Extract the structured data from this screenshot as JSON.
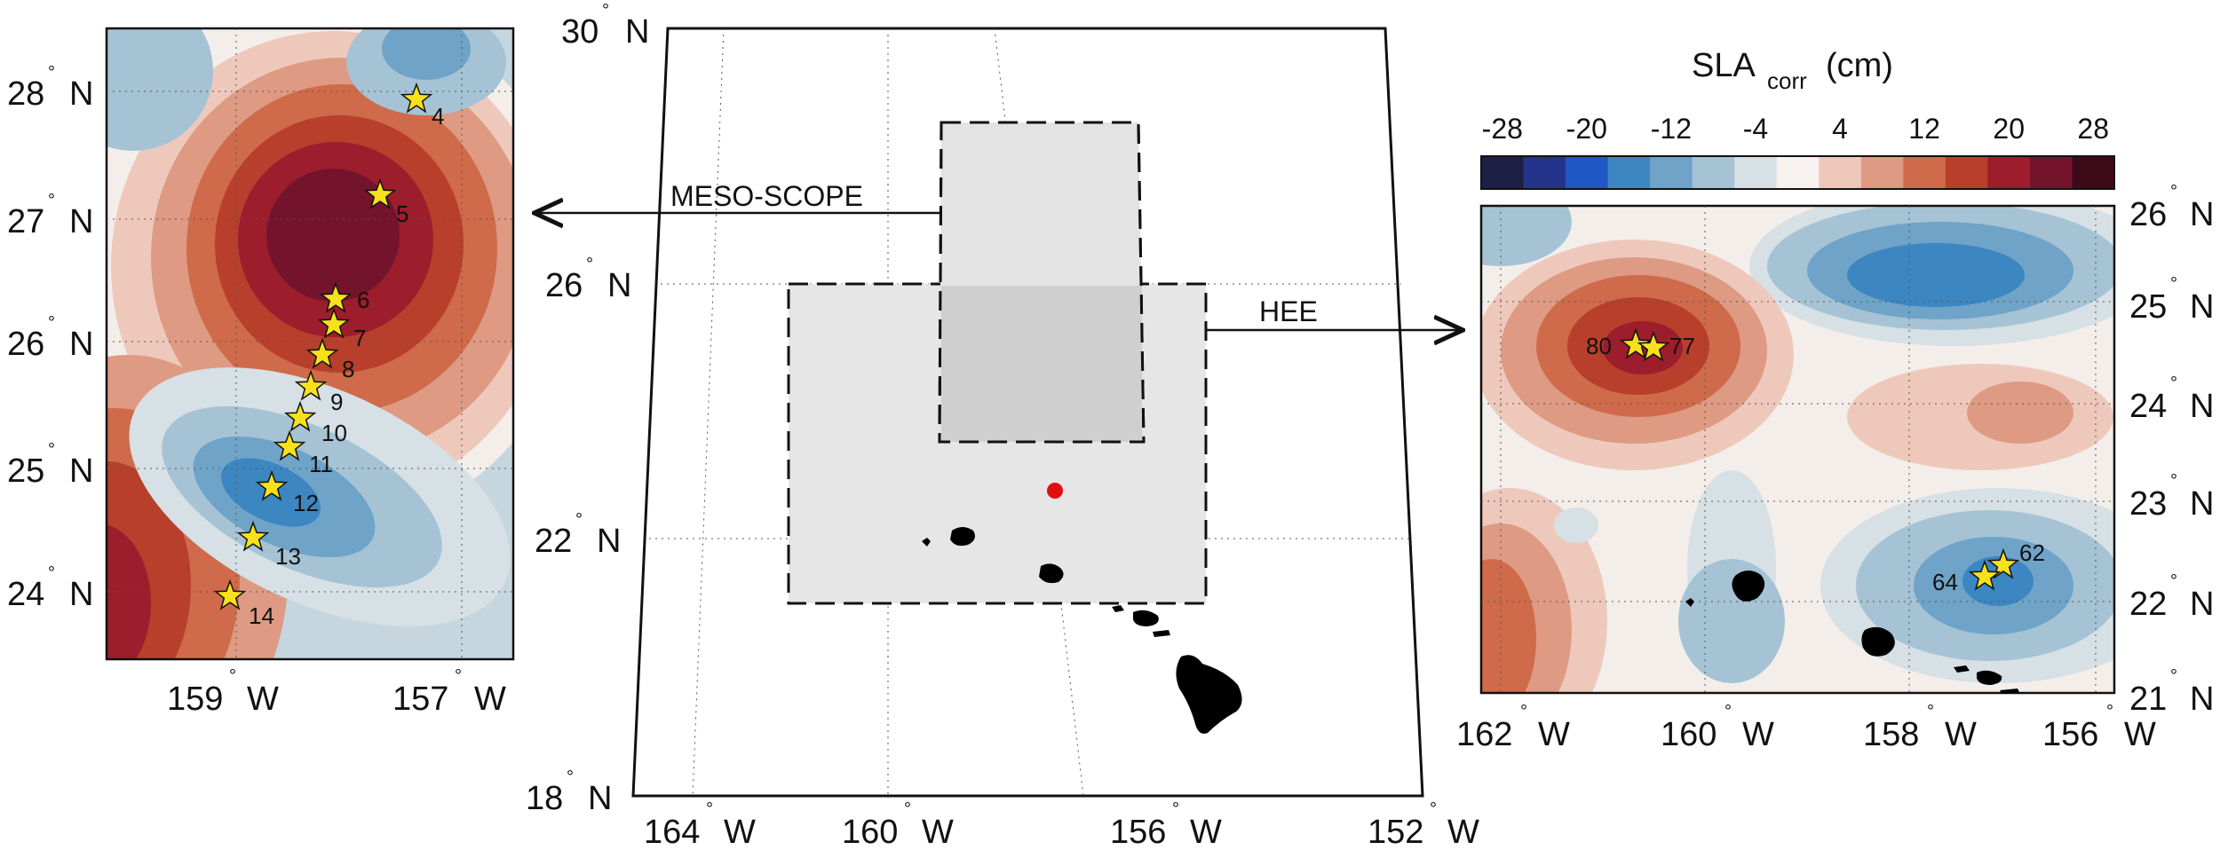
{
  "colorbar": {
    "title_main": "SLA",
    "title_sub": "corr",
    "title_unit": "(cm)",
    "ticks": [
      "-28",
      "-20",
      "-12",
      "-4",
      "4",
      "12",
      "20",
      "28"
    ],
    "colors": [
      "#1d1f45",
      "#24348a",
      "#1f58c4",
      "#3c86c2",
      "#6fa3c8",
      "#a5c3d4",
      "#d6e0e5",
      "#f7f2ef",
      "#eec9bb",
      "#de9a83",
      "#cf6a4a",
      "#b83f2b",
      "#9c1d2c",
      "#74142c",
      "#3e0a19"
    ]
  },
  "left_panel": {
    "lat_labels": [
      "28",
      "27",
      "26",
      "25",
      "24"
    ],
    "lon_labels": [
      "159",
      "157"
    ],
    "hemi_lat": "N",
    "hemi_lon": "W",
    "stations": [
      "4",
      "5",
      "6",
      "7",
      "8",
      "9",
      "10",
      "11",
      "12",
      "13",
      "14"
    ]
  },
  "center_map": {
    "lat_labels": [
      "30",
      "26",
      "22",
      "18"
    ],
    "lon_labels": [
      "164",
      "160",
      "156",
      "152"
    ],
    "hemi_lat": "N",
    "hemi_lon": "W",
    "regions": {
      "meso": "MESO-SCOPE",
      "hee": "HEE"
    }
  },
  "right_panel": {
    "lat_labels": [
      "26",
      "25",
      "24",
      "23",
      "22",
      "21"
    ],
    "lon_labels": [
      "162",
      "160",
      "158",
      "156"
    ],
    "hemi_lat": "N",
    "hemi_lon": "W",
    "stations": [
      "80",
      "77",
      "62",
      "64"
    ]
  },
  "degree_symbol": "°"
}
